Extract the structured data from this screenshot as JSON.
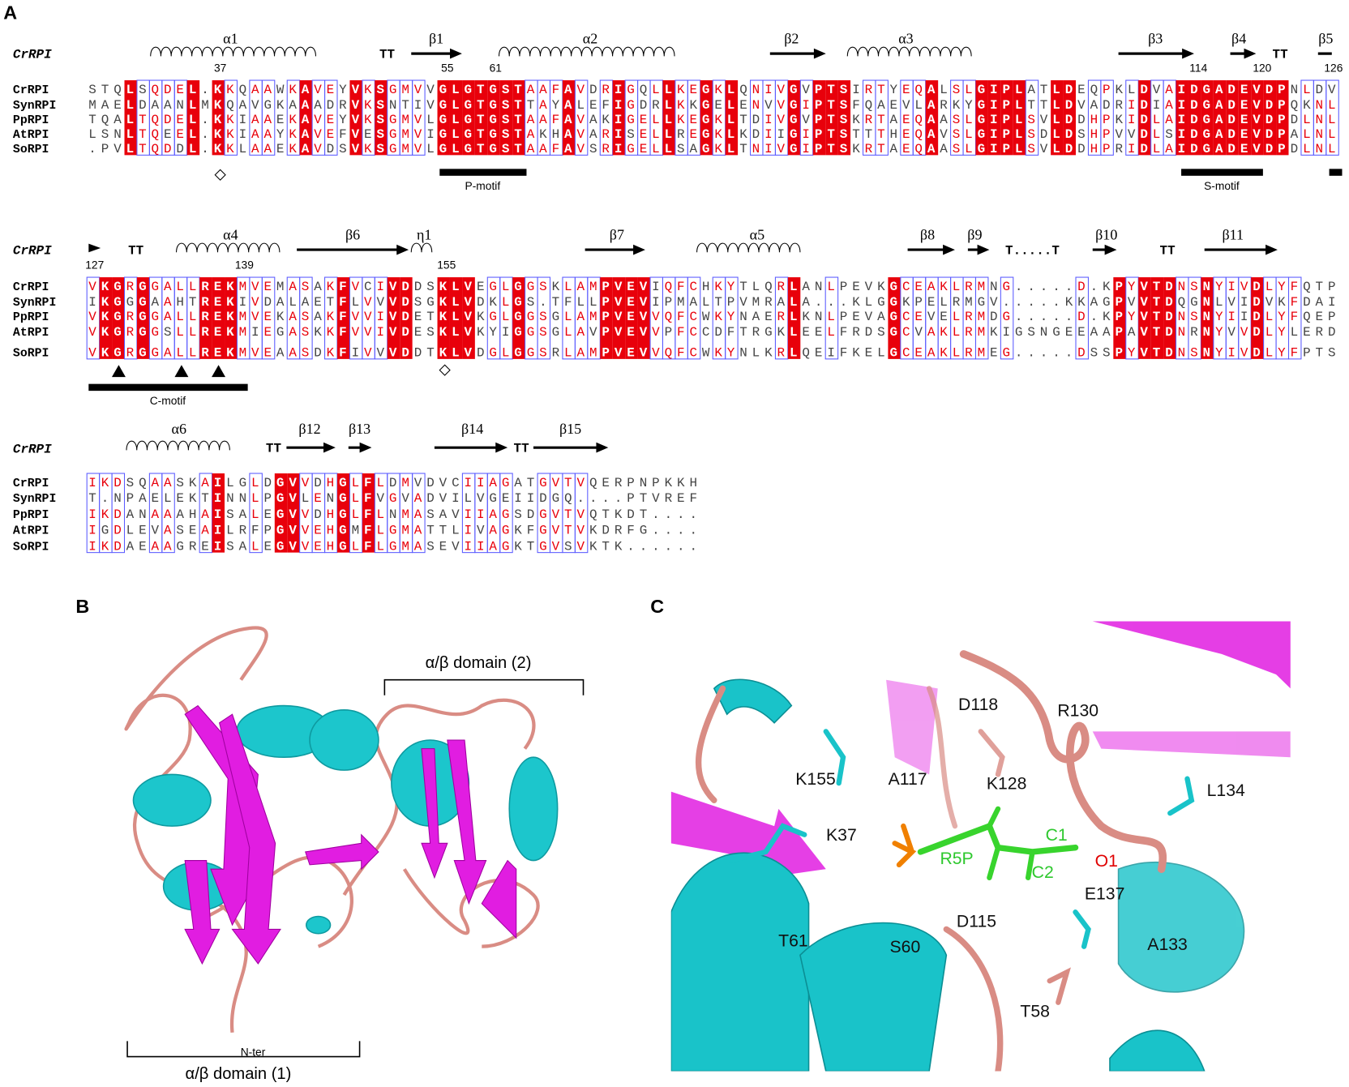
{
  "panels": {
    "A": {
      "label": "A",
      "blocks": [
        {
          "header": "CrRPI",
          "structure": [
            "α1",
            "TT",
            "β1",
            "α2",
            "β2",
            "α3",
            "β3",
            "β4",
            "TT",
            "β5"
          ],
          "residue_numbers": [
            37,
            55,
            61,
            114,
            120,
            126
          ],
          "rows": [
            {
              "name": "CrRPI",
              "sequence": "STQLSQDEL.KKQAAWKAVEYVKSGMVVGLGTGSTAAFAVDRIGQLLKEGKLQNIVGVPTSIRTYEQALSLGIPLATLDEQPKLDVAIDGADEVDPNLDV"
            },
            {
              "name": "SynRPI",
              "sequence": "MAELDAANLMKQAVGKAAADRVKSNTIVGLGTGSTTAYALEFIGDRLKKGELENVVGIPTSFQAEVLARKYGIPLTTLDVADRIDIAIDGADEVDPQKNL"
            },
            {
              "name": "PpRPI",
              "sequence": "TQALTQDEL.KKIAAEKAVEYVKSGMVLGLGTGSTAAFAVAKIGELLKEGKLTDIVGVPTSKRTAEQAASLGIPLSVLDDHPKIDLAIDGADEVDPDLNL"
            },
            {
              "name": "AtRPI",
              "sequence": "LSNLTQEEL.KKIAAYKAVEFVESGMVIGLGTGSTAKHAVARISELLREGKLKDIIGIPTSTTTHEQAVSLGIPLSDLDSHPVVDLSIDGADEVDPALNL"
            },
            {
              "name": "SoRPI",
              "sequence": ".PVLTQDDL.KKLAAEKAVDSVKSGMVLGLGTGSTAAFAVSRIGELLSAGKLTNIVGIPTSKRTAEQAASLGIPLSVLDDHPRIDLAIDGADEVDPDLNL"
            }
          ],
          "motifs": [
            "P-motif",
            "S-motif"
          ]
        },
        {
          "header": "CrRPI",
          "structure": [
            "TT",
            "α4",
            "β6",
            "η1",
            "β7",
            "α5",
            "β8",
            "β9",
            "T.....T",
            "β10",
            "TT",
            "β11"
          ],
          "residue_numbers": [
            127,
            139,
            155
          ],
          "rows": [
            {
              "name": "CrRPI",
              "sequence": "VKGRGGALLREKMVEMASAKFVCIVDDSKLVEGLGGSKLAMPVEVIQFCHKYTLQRLANLPEVKGCEAKLRMNG.....D.KPYVTDNSNYIVDLYFQTP"
            },
            {
              "name": "SynRPI",
              "sequence": "IKGGGAAHTREKIVDALAETFLVVVDSGKLVDKLGS.TFLLPVEVIPMALTPVMRALA...KLGGKPELRMGV.....KKAGPVVTDQGNLVIDVKFDAI"
            },
            {
              "name": "PpRPI",
              "sequence": "VKGRGGALLREKMVEKASAKFVVIVDETKLVKGLGGSGLAMPVEVVQFCWKYNAERLKNLPEVAGCEVELRMDG.....D.KPYVTDNSNYIIDLYFQEP"
            },
            {
              "name": "AtRPI",
              "sequence": "VKGRGGSLLREKMIEGASKKFVVIVDESKLVKYIGGSGLAVPVEVVPFCCDFTRGKLEELFRDSGCVAKLRMKIGSNGEEAAPAVTDNRNYVVDLYLERD"
            },
            {
              "name": "SoRPI",
              "sequence": "VKGRGGALLREKMVEAASDKFIVVVDDTKLVDGLGGSRLAMPVEVVQFCWKYNLKRLQEIFKELGCEAKLRMEG.....DSSPYVTDNSNYIVDLYFPTS"
            }
          ],
          "motifs": [
            "C-motif"
          ]
        },
        {
          "header": "CrRPI",
          "structure": [
            "α6",
            "TT",
            "β12",
            "β13",
            "β14",
            "TT",
            "β15"
          ],
          "residue_numbers": [],
          "rows": [
            {
              "name": "CrRPI",
              "sequence": "IKDSQAASKAILGLDGVVDHGLFLDMVDVCIIAGATGVTVQERPNPKKH"
            },
            {
              "name": "SynRPI",
              "sequence": "T.NPAELEKTINNLPGVLENGLFVGVADVILVGEIIDGQ....PTVREF"
            },
            {
              "name": "PpRPI",
              "sequence": "IKDANAAAHAISALEGVVDHGLFLNMASAVIIAGSDGVTVQTKDT...."
            },
            {
              "name": "AtRPI",
              "sequence": "IGDLEVASEAILRFPGVVEHGMFLGMATTLIVAGKFGVTVKDRFG...."
            },
            {
              "name": "SoRPI",
              "sequence": "IKDAEAAGREISALEGVVEHGLFLGMASEVIIAGKTGVSVKTK......"
            }
          ],
          "motifs": []
        }
      ]
    },
    "B": {
      "label": "B",
      "annotations": [
        "α/β domain (2)",
        "N-ter",
        "α/β domain (1)"
      ]
    },
    "C": {
      "label": "C",
      "residues": [
        "K155",
        "D118",
        "R130",
        "A117",
        "K128",
        "L134",
        "K37",
        "C1",
        "R5P",
        "C2",
        "O1",
        "E137",
        "T61",
        "S60",
        "D115",
        "A133",
        "T58"
      ]
    }
  }
}
